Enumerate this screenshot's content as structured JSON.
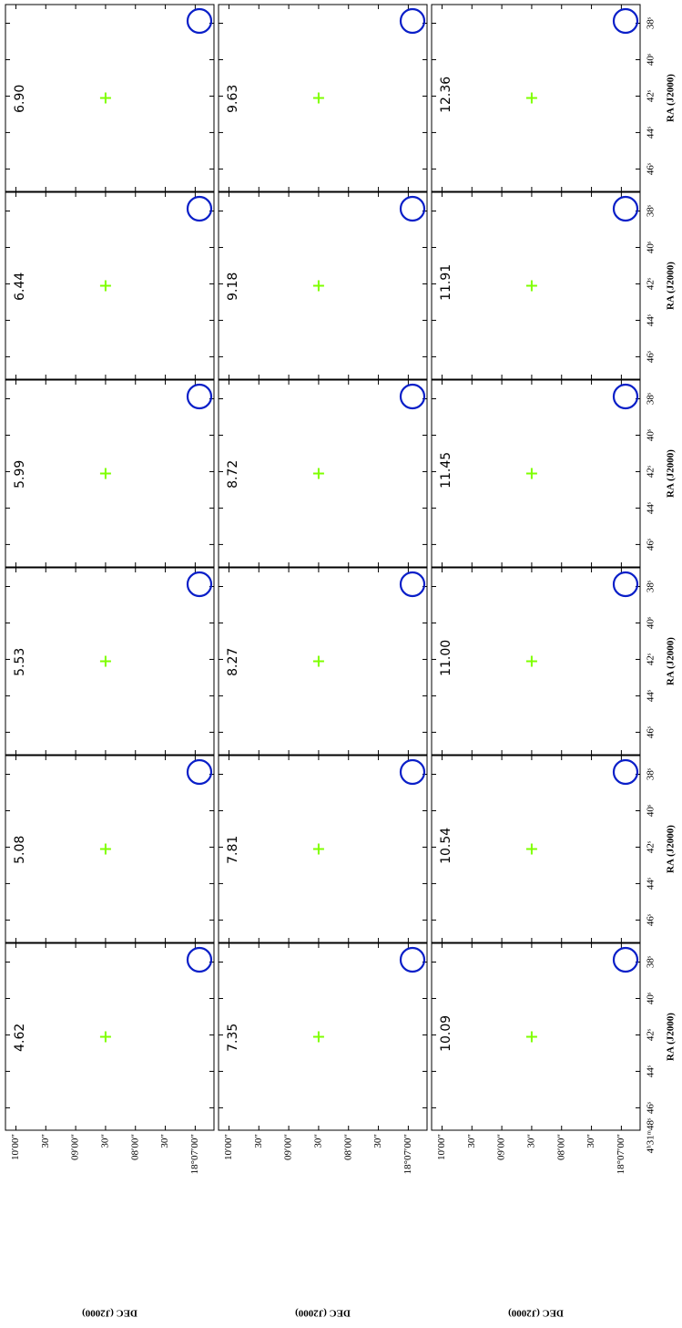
{
  "figure": {
    "x_axis_label": "RA (J2000)",
    "y_axis_label": "DEC (J2000)",
    "x_first_tick": "4ʰ31ᵐ48ˢ",
    "x_ticks": [
      "46ˢ",
      "44ˢ",
      "42ˢ",
      "40ˢ",
      "38ˢ"
    ],
    "y_ticks": [
      "10′00″",
      "30″",
      "09′00″",
      "30″",
      "08′00″",
      "30″",
      "18°07′00″"
    ],
    "rows": [
      [
        "4.62",
        "5.08",
        "5.53",
        "5.99",
        "6.44",
        "6.90"
      ],
      [
        "7.35",
        "7.81",
        "8.27",
        "8.72",
        "9.18",
        "9.63"
      ],
      [
        "10.09",
        "10.54",
        "11.00",
        "11.45",
        "11.91",
        "12.36"
      ]
    ]
  }
}
